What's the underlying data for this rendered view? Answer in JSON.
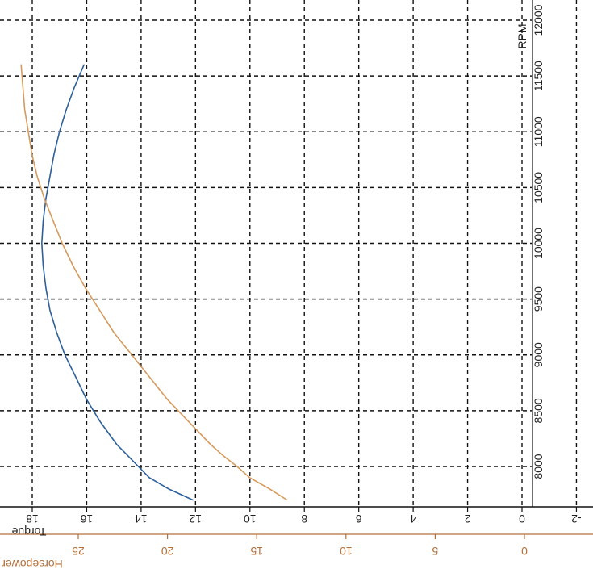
{
  "chart_data": {
    "type": "line",
    "orientation": "rotated-180",
    "grid": true,
    "rpm_axis": {
      "label": "RPM",
      "range": [
        7700,
        12000
      ],
      "ticks": [
        8000,
        8500,
        9000,
        9500,
        10000,
        10500,
        11000,
        11500,
        12000
      ],
      "tick_labels": [
        "8000",
        "8500",
        "9000",
        "9500",
        "10000",
        "10500",
        "11000",
        "11500",
        "12000"
      ]
    },
    "torque_axis": {
      "label": "Torque",
      "range": [
        -3,
        18
      ],
      "ticks": [
        -2,
        0,
        2,
        4,
        6,
        8,
        10,
        12,
        14,
        16,
        18
      ],
      "tick_labels": [
        "-2",
        "0",
        "2",
        "4",
        "6",
        "8",
        "10",
        "12",
        "14",
        "16",
        "18"
      ]
    },
    "horsepower_axis": {
      "label": "Horsepower",
      "range": [
        -2,
        28
      ],
      "ticks": [
        0,
        5,
        10,
        15,
        20,
        25
      ],
      "tick_labels": [
        "0",
        "5",
        "10",
        "15",
        "20",
        "25"
      ]
    },
    "series": [
      {
        "name": "Torque",
        "axis": "torque",
        "color": "#2d5f9a",
        "x": [
          7700,
          7800,
          7900,
          8000,
          8100,
          8200,
          8400,
          8600,
          8800,
          9000,
          9200,
          9400,
          9600,
          9800,
          10000,
          10200,
          10400,
          10600,
          10800,
          11000,
          11200,
          11400,
          11600
        ],
        "y": [
          12.1,
          13.0,
          13.7,
          14.1,
          14.5,
          14.9,
          15.5,
          16.0,
          16.4,
          16.8,
          17.1,
          17.35,
          17.5,
          17.6,
          17.65,
          17.6,
          17.5,
          17.35,
          17.2,
          17.0,
          16.75,
          16.45,
          16.1
        ]
      },
      {
        "name": "Horsepower",
        "axis": "horsepower",
        "color": "#d59a5c",
        "x": [
          7700,
          7800,
          7900,
          8000,
          8100,
          8200,
          8400,
          8600,
          8800,
          9000,
          9200,
          9400,
          9600,
          9800,
          10000,
          10200,
          10400,
          10600,
          10800,
          11000,
          11200,
          11400,
          11600
        ],
        "y": [
          13.3,
          14.3,
          15.4,
          16.1,
          16.9,
          17.6,
          18.8,
          20.0,
          21.0,
          22.0,
          23.0,
          23.8,
          24.6,
          25.3,
          25.9,
          26.4,
          26.9,
          27.3,
          27.6,
          27.8,
          28.0,
          28.1,
          28.2
        ]
      }
    ]
  },
  "colors": {
    "torque": "#2d5f9a",
    "horsepower": "#d59a5c",
    "horsepower_text": "#b5703a",
    "grid": "#111111"
  }
}
